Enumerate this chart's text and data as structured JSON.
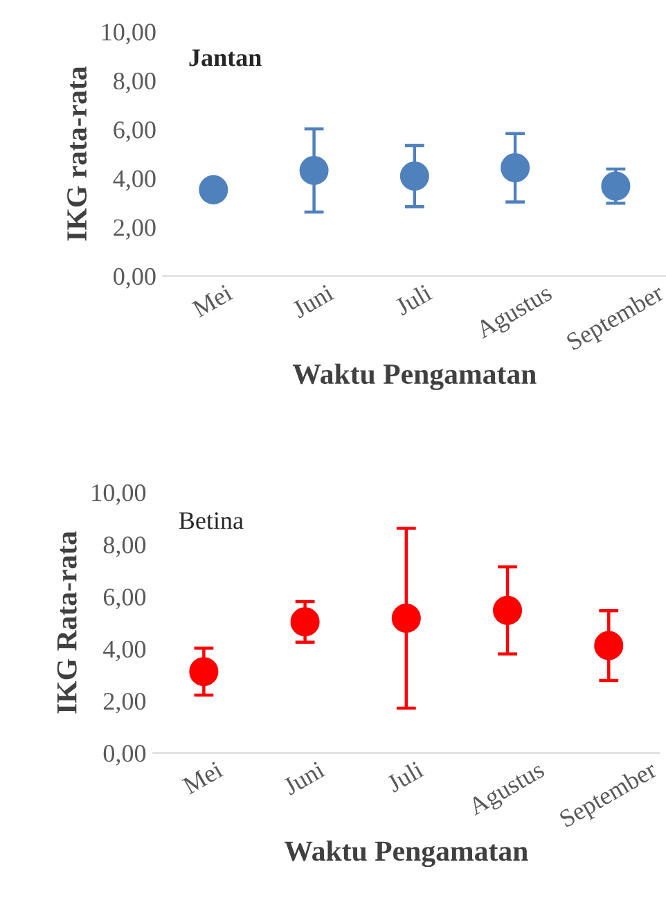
{
  "chart_data": [
    {
      "type": "scatter",
      "title": "Jantan",
      "xlabel": "Waktu Pengamatan",
      "ylabel": "IKG rata-rata",
      "categories": [
        "Mei",
        "Juni",
        "Juli",
        "Agustus",
        "September"
      ],
      "series": [
        {
          "color": "#4f81bd",
          "values": [
            3.53,
            4.32,
            4.09,
            4.43,
            3.68
          ],
          "errors": [
            null,
            1.7,
            1.25,
            1.4,
            0.7
          ]
        }
      ],
      "ylim": [
        0,
        10
      ],
      "yticks": [
        {
          "value": 0,
          "label": "0,00"
        },
        {
          "value": 2,
          "label": "2,00"
        },
        {
          "value": 4,
          "label": "4,00"
        },
        {
          "value": 6,
          "label": "6,00"
        },
        {
          "value": 8,
          "label": "8,00"
        },
        {
          "value": 10,
          "label": "10,00"
        }
      ],
      "marker": "circle",
      "grid": false
    },
    {
      "type": "scatter",
      "title": "Betina",
      "xlabel": "Waktu Pengamatan",
      "ylabel": "IKG Rata-rata",
      "categories": [
        "Mei",
        "Juni",
        "Juli",
        "Agustus",
        "September"
      ],
      "series": [
        {
          "color": "#ff0000",
          "values": [
            3.12,
            5.03,
            5.17,
            5.47,
            4.12
          ],
          "errors": [
            0.9,
            0.78,
            3.45,
            1.67,
            1.34
          ]
        }
      ],
      "ylim": [
        0,
        10
      ],
      "yticks": [
        {
          "value": 0,
          "label": "0,00"
        },
        {
          "value": 2,
          "label": "2,00"
        },
        {
          "value": 4,
          "label": "4,00"
        },
        {
          "value": 6,
          "label": "6,00"
        },
        {
          "value": 8,
          "label": "8,00"
        },
        {
          "value": 10,
          "label": "10,00"
        }
      ],
      "marker": "circle",
      "grid": false
    }
  ]
}
